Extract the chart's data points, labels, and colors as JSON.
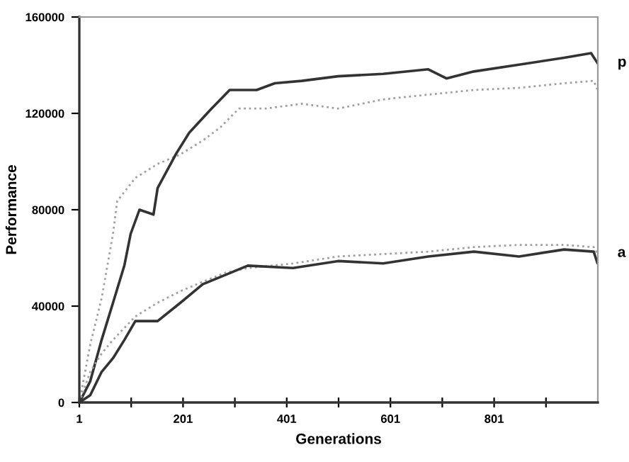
{
  "chart_data": {
    "type": "line",
    "xlabel": "Generations",
    "ylabel": "Performance",
    "xlim": [
      1,
      1001
    ],
    "ylim": [
      0,
      160000
    ],
    "xticks": [
      1,
      {
        "value": 101,
        "label": null
      },
      201,
      {
        "value": 301,
        "label": null
      },
      401,
      {
        "value": 501,
        "label": null
      },
      601,
      {
        "value": 701,
        "label": null
      },
      801,
      {
        "value": 901,
        "label": null
      }
    ],
    "yticks": [
      0,
      40000,
      80000,
      120000,
      160000
    ],
    "grid": false,
    "legend": false,
    "marker": "none",
    "series": [
      {
        "color": "#a0a0a0",
        "line_style": "dotted",
        "x": [
          1,
          22,
          44,
          66,
          74,
          109,
          152,
          196,
          239,
          274,
          309,
          361,
          430,
          500,
          587,
          674,
          762,
          849,
          936,
          993,
          1000
        ],
        "values": [
          0,
          24000,
          43300,
          70000,
          83600,
          93200,
          99000,
          103000,
          108700,
          114400,
          122000,
          122000,
          124000,
          122000,
          125800,
          127800,
          129700,
          130600,
          132500,
          133500,
          130000
        ]
      },
      {
        "color": "#333333",
        "line_style": "solid",
        "x": [
          1,
          22,
          44,
          66,
          88,
          100,
          117,
          144,
          152,
          187,
          213,
          256,
          291,
          343,
          378,
          430,
          500,
          587,
          674,
          709,
          762,
          849,
          936,
          988,
          1000
        ],
        "values": [
          0,
          8800,
          26000,
          41400,
          57000,
          70000,
          80000,
          78000,
          89000,
          103000,
          112000,
          122000,
          129700,
          129700,
          132500,
          133500,
          135400,
          136400,
          138300,
          134500,
          137400,
          140200,
          143100,
          145000,
          141000
        ]
      },
      {
        "color": "#a0a0a0",
        "line_style": "dotted",
        "x": [
          1,
          22,
          44,
          66,
          109,
          152,
          196,
          239,
          283,
          326,
          413,
          500,
          587,
          674,
          762,
          849,
          936,
          993,
          1000
        ],
        "values": [
          0,
          12700,
          20300,
          26000,
          35700,
          41400,
          46200,
          50100,
          53900,
          55800,
          57700,
          60600,
          61600,
          62600,
          64500,
          65400,
          65400,
          64500,
          62000
        ]
      },
      {
        "color": "#333333",
        "line_style": "solid",
        "x": [
          1,
          22,
          44,
          66,
          88,
          109,
          152,
          196,
          239,
          283,
          326,
          413,
          500,
          587,
          674,
          762,
          849,
          936,
          993,
          1000
        ],
        "values": [
          0,
          3000,
          12700,
          18400,
          26000,
          33800,
          33800,
          41400,
          49100,
          53000,
          56800,
          55800,
          58700,
          57700,
          60600,
          62600,
          60600,
          63500,
          62600,
          58000
        ]
      }
    ],
    "annotations": [
      {
        "text": "p",
        "x": 1001,
        "y": 141000
      },
      {
        "text": "a",
        "x": 1001,
        "y": 62000
      }
    ]
  }
}
